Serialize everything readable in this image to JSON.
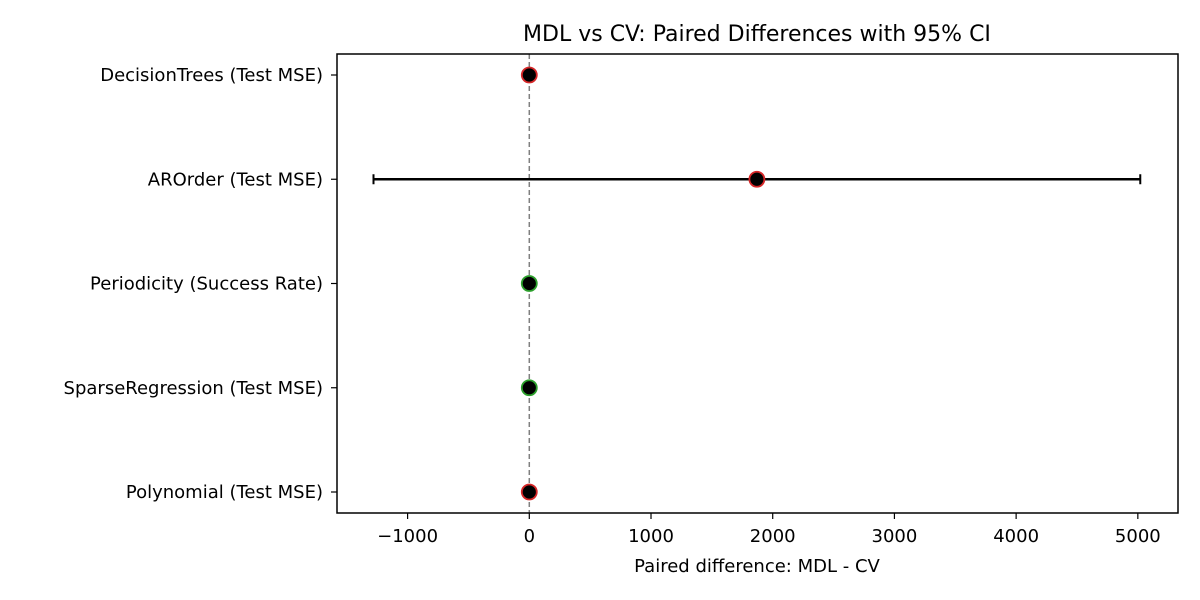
{
  "chart_data": {
    "type": "errorbar",
    "title": "MDL vs CV: Paired Differences with 95% CI",
    "xlabel": "Paired difference: MDL - CV",
    "ylabel": "",
    "xlim": [
      -1580,
      5330
    ],
    "xticks": [
      -1000,
      0,
      1000,
      2000,
      3000,
      4000,
      5000
    ],
    "xtick_labels": [
      "−1000",
      "0",
      "1000",
      "2000",
      "3000",
      "4000",
      "5000"
    ],
    "reference_line": {
      "x": 0,
      "style": "dashed",
      "color": "#808080"
    },
    "grid": false,
    "categories": [
      "DecisionTrees (Test MSE)",
      "AROrder (Test MSE)",
      "Periodicity (Success Rate)",
      "SparseRegression (Test MSE)",
      "Polynomial (Test MSE)"
    ],
    "points": [
      {
        "label": "DecisionTrees (Test MSE)",
        "mean": 0,
        "ci_low": 0,
        "ci_high": 0,
        "edge_color": "#d62728"
      },
      {
        "label": "AROrder (Test MSE)",
        "mean": 1870,
        "ci_low": -1280,
        "ci_high": 5020,
        "edge_color": "#d62728"
      },
      {
        "label": "Periodicity (Success Rate)",
        "mean": 0,
        "ci_low": 0,
        "ci_high": 0,
        "edge_color": "#2ca02c"
      },
      {
        "label": "SparseRegression (Test MSE)",
        "mean": 0,
        "ci_low": 0,
        "ci_high": 0,
        "edge_color": "#2ca02c"
      },
      {
        "label": "Polynomial (Test MSE)",
        "mean": 0,
        "ci_low": 0,
        "ci_high": 0,
        "edge_color": "#d62728"
      }
    ],
    "marker_face_color": "#000000"
  }
}
